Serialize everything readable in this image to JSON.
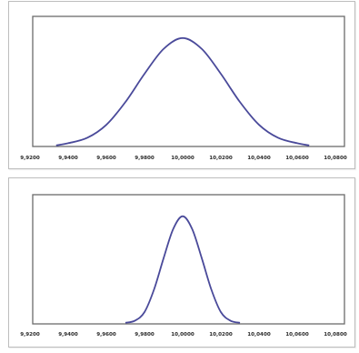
{
  "chart_data": [
    {
      "type": "line",
      "title": "",
      "xlabel": "",
      "ylabel": "",
      "grid": false,
      "legend": "none",
      "line_color": "#4a4a9a",
      "xlim": [
        9.92,
        10.08
      ],
      "ylim": [
        0,
        1.2
      ],
      "x_tick_labels": [
        "9,9200",
        "9,9400",
        "9,9600",
        "9,9800",
        "10,0000",
        "10,0200",
        "10,0400",
        "10,0600",
        "10,0800"
      ],
      "series": [
        {
          "x": [
            9.9337,
            9.94,
            9.95,
            9.96,
            9.97,
            9.98,
            9.99,
            10.0,
            10.01,
            10.02,
            10.03,
            10.04,
            10.05,
            10.06,
            10.0663
          ],
          "y": [
            0.01,
            0.03,
            0.08,
            0.2,
            0.41,
            0.67,
            0.9,
            1.0,
            0.9,
            0.67,
            0.41,
            0.2,
            0.08,
            0.03,
            0.01
          ]
        }
      ]
    },
    {
      "type": "line",
      "title": "",
      "xlabel": "",
      "ylabel": "",
      "grid": false,
      "legend": "none",
      "line_color": "#4a4a9a",
      "xlim": [
        9.92,
        10.08
      ],
      "ylim": [
        0,
        1.2
      ],
      "x_tick_labels": [
        "9,9200",
        "9,9400",
        "9,9600",
        "9,9800",
        "10,0000",
        "10,0200",
        "10,0400",
        "10,0600",
        "10,0800"
      ],
      "series": [
        {
          "x": [
            9.97,
            9.975,
            9.98,
            9.985,
            9.99,
            9.995,
            10.0,
            10.005,
            10.01,
            10.015,
            10.02,
            10.025,
            10.03
          ],
          "y": [
            0.01,
            0.03,
            0.11,
            0.32,
            0.61,
            0.88,
            1.0,
            0.88,
            0.61,
            0.32,
            0.11,
            0.03,
            0.01
          ]
        }
      ]
    }
  ]
}
